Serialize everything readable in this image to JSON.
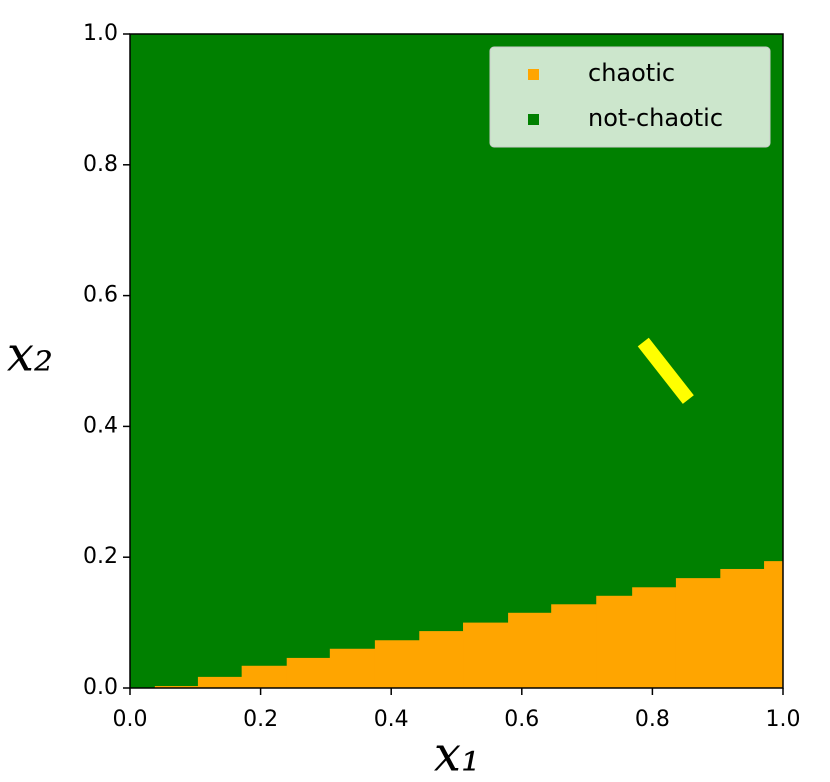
{
  "chart_data": {
    "type": "region",
    "xlabel": "x₁",
    "ylabel": "x₂",
    "xlim": [
      0,
      1
    ],
    "ylim": [
      0,
      1
    ],
    "xticks": [
      {
        "value": 0,
        "label": "0.0"
      },
      0.2,
      0.4,
      0.6,
      0.8,
      {
        "value": 1,
        "label": "1.0"
      }
    ],
    "yticks": [
      {
        "value": 0,
        "label": "0.0"
      },
      0.2,
      0.4,
      0.6,
      0.8,
      {
        "value": 1,
        "label": "1.0"
      }
    ],
    "legend": "upper right",
    "series": [
      {
        "name": "chaotic",
        "color": "#ffa500",
        "bins": [
          0,
          0.038,
          0.104,
          0.171,
          0.24,
          0.306,
          0.375,
          0.443,
          0.51,
          0.579,
          0.645,
          0.714,
          0.769,
          0.836,
          0.904,
          0.971,
          1
        ],
        "values": [
          0,
          0.003,
          0.017,
          0.034,
          0.046,
          0.06,
          0.073,
          0.087,
          0.1,
          0.115,
          0.128,
          0.141,
          0.154,
          0.168,
          0.182,
          0.194
        ]
      },
      {
        "name": "not-chaotic",
        "color": "#008000"
      },
      {
        "color": "#ffff00",
        "x": [
          0.786,
          0.855
        ],
        "values": [
          0.529,
          0.441
        ]
      }
    ]
  }
}
